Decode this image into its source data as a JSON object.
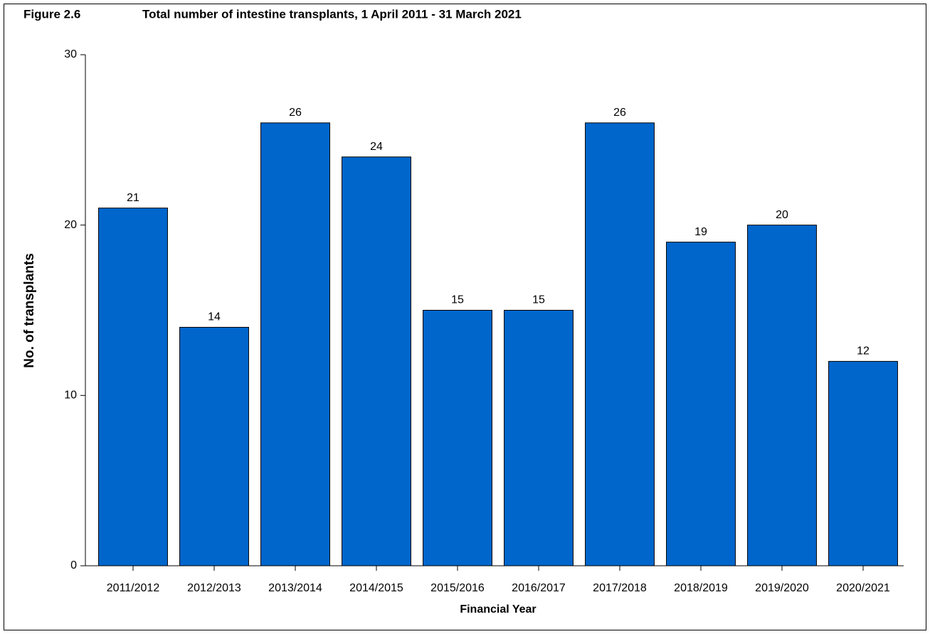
{
  "chart_data": {
    "type": "bar",
    "figure_label": "Figure 2.6",
    "title": "Total number of intestine transplants, 1 April 2011 - 31 March 2021",
    "x_label": "Financial Year",
    "y_label": "No. of transplants",
    "categories": [
      "2011/2012",
      "2012/2013",
      "2013/2014",
      "2014/2015",
      "2015/2016",
      "2016/2017",
      "2017/2018",
      "2018/2019",
      "2019/2020",
      "2020/2021"
    ],
    "values": [
      21,
      14,
      26,
      24,
      15,
      15,
      26,
      19,
      20,
      12
    ],
    "color": "#0066cc",
    "ylim": [
      0,
      30
    ],
    "yticks": [
      0,
      10,
      20,
      30
    ],
    "grid": false
  }
}
